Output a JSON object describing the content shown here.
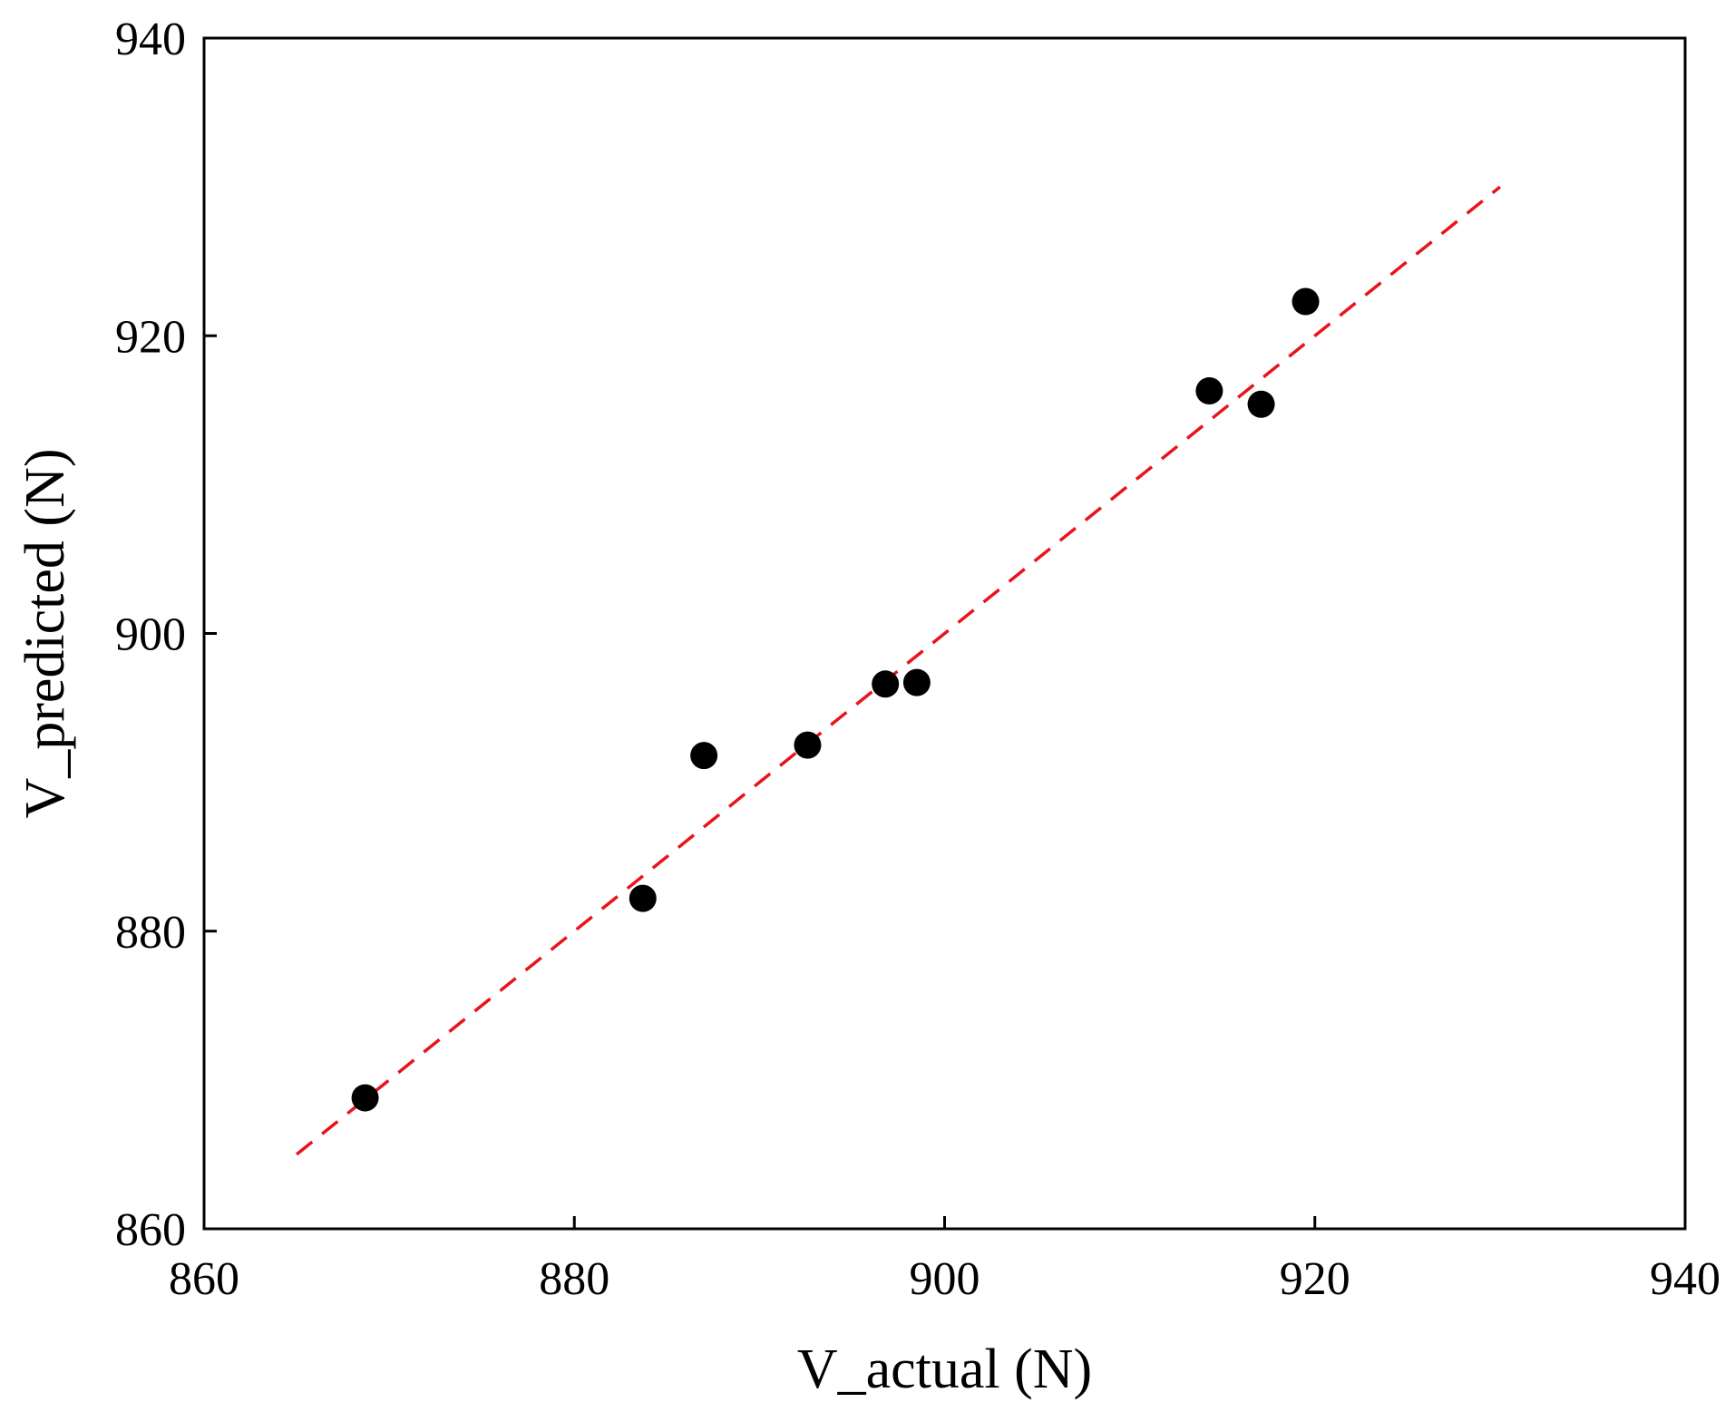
{
  "chart_data": {
    "type": "scatter",
    "xlabel": "V_actual (N)",
    "ylabel": "V_predicted (N)",
    "xlim": [
      860,
      940
    ],
    "ylim": [
      860,
      940
    ],
    "xticks": [
      860,
      880,
      900,
      920,
      940
    ],
    "yticks": [
      860,
      880,
      900,
      920,
      940
    ],
    "xtick_labels": [
      "860",
      "880",
      "900",
      "920",
      "940"
    ],
    "ytick_labels": [
      "860",
      "880",
      "900",
      "920",
      "940"
    ],
    "grid": false,
    "series": [
      {
        "marker_color": "#000000",
        "points": [
          {
            "x": 868.7,
            "y": 868.8
          },
          {
            "x": 883.7,
            "y": 882.2
          },
          {
            "x": 887.0,
            "y": 891.8
          },
          {
            "x": 892.6,
            "y": 892.5
          },
          {
            "x": 896.8,
            "y": 896.6
          },
          {
            "x": 898.5,
            "y": 896.7
          },
          {
            "x": 914.3,
            "y": 916.3
          },
          {
            "x": 917.1,
            "y": 915.4
          },
          {
            "x": 919.5,
            "y": 922.3
          }
        ]
      }
    ],
    "reference_line": {
      "color": "#e8141c",
      "style": "dashed",
      "x": [
        865,
        930
      ],
      "y": [
        865,
        930
      ]
    }
  }
}
